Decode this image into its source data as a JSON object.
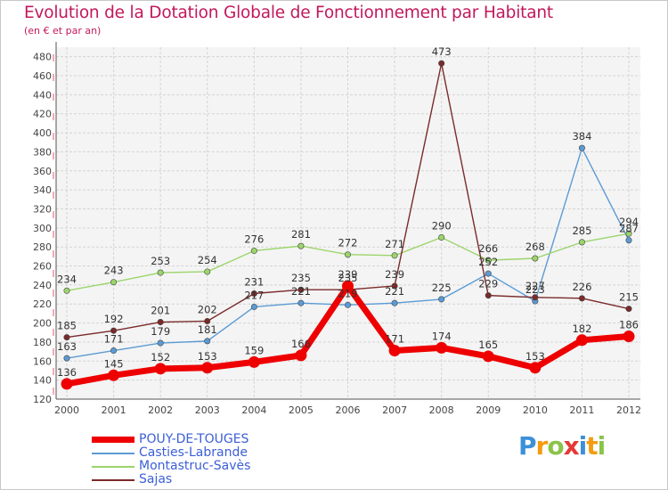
{
  "title": "Evolution de la Dotation Globale de Fonctionnement par Habitant",
  "subtitle": "(en € et par an)",
  "brand": {
    "letters": [
      "P",
      "r",
      "o",
      "x",
      "i",
      "t",
      "i"
    ],
    "colors": [
      "#3c8fd9",
      "#f39c12",
      "#8bc34a",
      "#e53935",
      "#3c8fd9",
      "#f39c12",
      "#8bc34a"
    ]
  },
  "chart_data": {
    "type": "line",
    "x": [
      "2000",
      "2001",
      "2002",
      "2003",
      "2004",
      "2005",
      "2006",
      "2007",
      "2008",
      "2009",
      "2010",
      "2011",
      "2012"
    ],
    "ylim": [
      120,
      490
    ],
    "yticks": [
      "120",
      "140",
      "160",
      "180",
      "200",
      "220",
      "240",
      "260",
      "280",
      "300",
      "320",
      "340",
      "360",
      "380",
      "400",
      "420",
      "440",
      "460",
      "480"
    ],
    "grid": true,
    "legend_position": "bottom-left",
    "series": [
      {
        "name": "POUY-DE-TOUGES",
        "color": "#ee0000",
        "label_color": "#333333",
        "values": [
          136,
          145,
          152,
          153,
          159,
          166,
          239,
          171,
          174,
          165,
          153,
          182,
          186
        ],
        "labels": [
          "136",
          "145",
          "152",
          "153",
          "159",
          "166",
          "239",
          "171",
          "174",
          "165",
          "153",
          "182",
          "186"
        ]
      },
      {
        "name": "Casties-Labrande",
        "color": "#5b9bd5",
        "label_color": "#333333",
        "values": [
          163,
          171,
          179,
          181,
          217,
          221,
          219,
          221,
          225,
          252,
          223,
          384,
          287
        ],
        "labels": [
          "163",
          "171",
          "179",
          "181",
          "217",
          "221",
          "219",
          "221",
          "225",
          "252",
          "223",
          "384",
          "287"
        ]
      },
      {
        "name": "Montastruc-Savès",
        "color": "#9cd56b",
        "label_color": "#333333",
        "values": [
          234,
          243,
          253,
          254,
          276,
          281,
          272,
          271,
          290,
          266,
          268,
          285,
          294
        ],
        "labels": [
          "234",
          "243",
          "253",
          "254",
          "276",
          "281",
          "272",
          "271",
          "290",
          "266",
          "268",
          "285",
          "294"
        ]
      },
      {
        "name": "Sajas",
        "color": "#7b2a2a",
        "label_color": "#333333",
        "values": [
          185,
          192,
          201,
          202,
          231,
          235,
          235,
          239,
          473,
          229,
          227,
          226,
          215
        ],
        "labels": [
          "185",
          "192",
          "201",
          "202",
          "231",
          "235",
          "235",
          "239",
          "473",
          "229",
          "227",
          "226",
          "215"
        ]
      }
    ]
  }
}
